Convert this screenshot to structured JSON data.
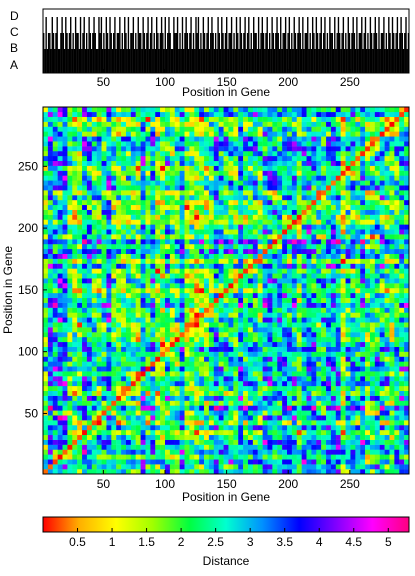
{
  "chart_data": [
    {
      "type": "bar",
      "description_role": "sequence class track",
      "categories": [
        "A",
        "B",
        "C",
        "D"
      ],
      "xlabel": "Position in Gene",
      "xlim": [
        1,
        298
      ],
      "xticks": [
        50,
        100,
        150,
        200,
        250
      ],
      "sequence_levels": [
        2,
        1,
        3,
        1,
        2,
        2,
        1,
        3,
        2,
        1,
        2,
        3,
        1,
        1,
        2,
        3,
        2,
        1,
        3,
        2,
        1,
        2,
        3,
        1,
        2,
        1,
        3,
        2,
        2,
        1,
        3,
        1,
        2,
        3,
        1,
        2,
        1,
        3,
        2,
        1,
        2,
        3,
        2,
        1,
        1,
        3,
        2,
        3,
        1,
        2,
        1,
        3,
        2,
        1,
        3,
        2,
        1,
        2,
        3,
        1,
        2,
        2,
        3,
        1,
        2,
        1,
        3,
        2,
        1,
        3,
        1,
        2,
        2,
        3,
        1,
        2,
        1,
        3,
        2,
        2,
        1,
        3,
        2,
        1,
        2,
        3,
        1,
        2,
        3,
        1,
        2,
        1,
        3,
        2,
        1,
        2,
        3,
        2,
        1,
        3,
        1,
        2,
        3,
        2,
        1,
        1,
        3,
        2,
        2,
        3,
        1,
        2,
        1,
        3,
        1,
        2,
        3,
        2,
        1,
        2,
        3,
        1,
        2,
        1,
        3,
        2,
        3,
        1,
        2,
        1,
        3,
        2,
        1,
        2,
        3,
        1,
        2,
        3,
        2,
        1,
        2,
        1,
        3,
        2,
        1,
        3,
        2,
        1,
        2,
        3,
        1,
        2,
        2,
        3,
        1,
        2,
        1,
        3,
        2,
        1,
        3,
        2,
        1,
        2,
        3,
        1,
        2,
        3,
        1,
        2,
        1,
        3,
        2,
        2,
        1,
        3,
        1,
        2,
        3,
        2,
        1,
        2,
        3,
        1,
        2,
        1,
        3,
        2,
        1,
        2,
        3,
        2,
        1,
        3,
        1,
        2,
        2,
        3,
        1,
        2,
        3,
        1,
        2,
        1,
        3,
        2,
        1,
        2,
        3,
        2,
        1,
        3,
        1,
        2,
        2,
        3,
        1,
        2,
        1,
        3,
        2,
        1,
        3,
        2,
        1,
        2,
        3,
        1,
        2,
        3,
        1,
        2,
        1,
        3,
        2,
        2,
        1,
        3,
        1,
        2,
        3,
        2,
        1,
        2,
        3,
        1,
        2,
        1,
        3,
        2,
        1,
        2,
        3,
        2,
        1,
        3,
        1,
        2,
        2,
        3,
        1,
        2,
        3,
        1,
        2,
        1,
        3,
        2,
        1,
        2,
        3,
        2,
        1,
        3,
        1,
        2,
        2,
        3,
        1,
        2,
        1,
        3,
        2,
        1,
        3,
        2,
        1,
        2,
        3,
        1,
        2,
        3,
        2,
        1,
        2,
        3,
        1,
        2
      ]
    },
    {
      "type": "heatmap",
      "xlabel": "Position in Gene",
      "ylabel": "Position in Gene",
      "xlim": [
        1,
        298
      ],
      "ylim": [
        1,
        298
      ],
      "xticks": [
        50,
        100,
        150,
        200,
        250
      ],
      "yticks": [
        50,
        100,
        150,
        200,
        250
      ],
      "colorbar": {
        "label": "Distance",
        "range": [
          0,
          5.3
        ],
        "ticks": [
          0.5,
          1,
          1.5,
          2,
          2.5,
          3,
          3.5,
          4,
          4.5,
          5
        ],
        "tick_labels": [
          "0.5",
          "1",
          "1.5",
          "2",
          "2.5",
          "3",
          "3.5",
          "4",
          "4.5",
          "5"
        ],
        "colors": [
          "#ff0000",
          "#ffb000",
          "#ffff00",
          "#a0ff00",
          "#00ff40",
          "#00ffd0",
          "#0090ff",
          "#0000ff",
          "#8000ff",
          "#ff00ff",
          "#ff0080"
        ]
      },
      "diagonal_value": 0
    }
  ]
}
